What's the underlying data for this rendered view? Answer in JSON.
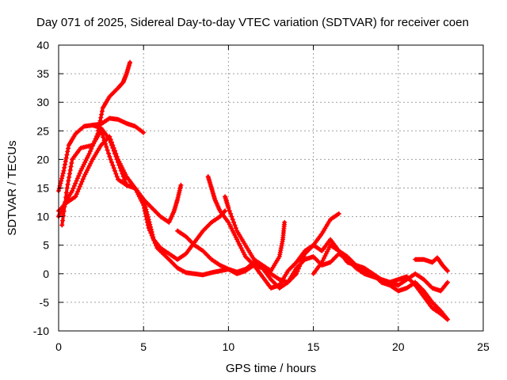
{
  "chart_data": {
    "type": "scatter",
    "title": "Day 071 of 2025, Sidereal Day-to-day VTEC variation (SDTVAR) for receiver coen",
    "xlabel": "GPS time / hours",
    "ylabel": "SDTVAR / TECUs",
    "xlim": [
      0,
      25
    ],
    "ylim": [
      -10,
      40
    ],
    "xticks": [
      "0",
      "5",
      "10",
      "15",
      "20",
      "25"
    ],
    "yticks": [
      "-10",
      "-5",
      "0",
      "5",
      "10",
      "15",
      "20",
      "25",
      "30",
      "35",
      "40"
    ],
    "grid": true,
    "marker": "+",
    "series_color": "#ff0000",
    "series": [
      {
        "name": "track-1",
        "points": [
          [
            0.0,
            14.5
          ],
          [
            0.3,
            18.0
          ],
          [
            0.6,
            22.5
          ],
          [
            1.0,
            24.5
          ],
          [
            1.5,
            25.8
          ],
          [
            2.0,
            26.0
          ],
          [
            2.5,
            26.2
          ],
          [
            3.0,
            27.2
          ],
          [
            3.5,
            27.0
          ],
          [
            4.0,
            26.3
          ],
          [
            4.5,
            25.8
          ],
          [
            5.0,
            24.7
          ]
        ]
      },
      {
        "name": "track-2",
        "points": [
          [
            0.0,
            10.0
          ],
          [
            0.3,
            12.0
          ],
          [
            0.8,
            14.5
          ],
          [
            1.3,
            18.0
          ],
          [
            1.8,
            21.0
          ],
          [
            2.3,
            24.5
          ],
          [
            2.6,
            29.0
          ],
          [
            3.0,
            31.0
          ],
          [
            3.5,
            32.5
          ],
          [
            3.8,
            33.5
          ],
          [
            4.0,
            35.0
          ],
          [
            4.2,
            37.0
          ]
        ]
      },
      {
        "name": "track-3",
        "points": [
          [
            0.2,
            8.5
          ],
          [
            0.5,
            15.0
          ],
          [
            0.8,
            20.0
          ],
          [
            1.3,
            22.0
          ],
          [
            2.0,
            22.5
          ],
          [
            2.5,
            25.0
          ],
          [
            3.0,
            20.5
          ],
          [
            3.5,
            16.5
          ],
          [
            4.0,
            15.5
          ],
          [
            4.5,
            15.0
          ],
          [
            5.0,
            13.0
          ],
          [
            5.3,
            9.5
          ],
          [
            5.6,
            6.0
          ],
          [
            6.0,
            4.5
          ],
          [
            6.5,
            3.5
          ],
          [
            7.0,
            2.5
          ],
          [
            7.5,
            3.5
          ],
          [
            8.0,
            5.5
          ],
          [
            8.5,
            7.5
          ],
          [
            9.0,
            9.0
          ],
          [
            9.5,
            10.0
          ],
          [
            9.8,
            11.0
          ]
        ]
      },
      {
        "name": "track-4",
        "points": [
          [
            0.0,
            11.0
          ],
          [
            0.5,
            12.5
          ],
          [
            1.0,
            13.5
          ],
          [
            1.5,
            17.0
          ],
          [
            2.0,
            20.0
          ],
          [
            2.5,
            22.5
          ],
          [
            3.0,
            24.0
          ],
          [
            3.5,
            20.0
          ],
          [
            4.0,
            17.0
          ],
          [
            4.5,
            15.0
          ],
          [
            5.0,
            13.0
          ],
          [
            5.5,
            11.5
          ],
          [
            6.0,
            10.0
          ],
          [
            6.5,
            9.0
          ],
          [
            6.8,
            11.0
          ],
          [
            7.0,
            13.0
          ],
          [
            7.2,
            15.5
          ]
        ]
      },
      {
        "name": "track-5",
        "points": [
          [
            2.0,
            26.0
          ],
          [
            2.5,
            25.5
          ],
          [
            3.0,
            23.5
          ],
          [
            3.5,
            19.5
          ],
          [
            4.0,
            15.5
          ],
          [
            4.5,
            15.0
          ],
          [
            5.0,
            12.0
          ],
          [
            5.3,
            8.0
          ],
          [
            5.8,
            4.5
          ],
          [
            6.5,
            2.5
          ],
          [
            7.0,
            1.0
          ],
          [
            7.5,
            0.2
          ],
          [
            8.0,
            0.0
          ],
          [
            8.5,
            -0.2
          ],
          [
            9.0,
            0.2
          ],
          [
            9.5,
            0.5
          ],
          [
            10.0,
            0.8
          ],
          [
            10.5,
            0.3
          ],
          [
            11.0,
            0.8
          ],
          [
            11.5,
            2.0
          ],
          [
            12.0,
            1.5
          ],
          [
            12.5,
            0.0
          ],
          [
            13.0,
            -1.0
          ],
          [
            13.5,
            -1.5
          ],
          [
            14.0,
            0.0
          ],
          [
            14.5,
            3.5
          ]
        ]
      },
      {
        "name": "track-6",
        "points": [
          [
            7.0,
            7.5
          ],
          [
            7.5,
            6.5
          ],
          [
            8.0,
            5.0
          ],
          [
            8.5,
            4.0
          ],
          [
            9.0,
            2.5
          ],
          [
            9.5,
            1.5
          ],
          [
            10.0,
            0.8
          ],
          [
            10.5,
            0.0
          ],
          [
            11.0,
            0.5
          ],
          [
            11.5,
            1.5
          ],
          [
            12.0,
            1.0
          ],
          [
            12.5,
            -1.0
          ],
          [
            13.0,
            -2.5
          ],
          [
            13.5,
            -1.5
          ],
          [
            14.0,
            1.0
          ],
          [
            14.5,
            2.5
          ],
          [
            15.0,
            3.0
          ],
          [
            15.5,
            1.5
          ],
          [
            16.0,
            2.0
          ],
          [
            16.5,
            3.5
          ],
          [
            17.0,
            2.5
          ],
          [
            17.5,
            1.0
          ],
          [
            18.0,
            0.0
          ],
          [
            18.5,
            -0.5
          ],
          [
            19.0,
            -1.0
          ],
          [
            19.5,
            -1.5
          ],
          [
            20.0,
            -2.0
          ],
          [
            20.5,
            -1.0
          ],
          [
            21.0,
            0.0
          ],
          [
            21.5,
            -1.0
          ],
          [
            22.0,
            -2.5
          ],
          [
            22.5,
            -3.0
          ],
          [
            22.9,
            -1.5
          ]
        ]
      },
      {
        "name": "track-7",
        "points": [
          [
            8.8,
            17.0
          ],
          [
            9.0,
            15.0
          ],
          [
            9.2,
            13.0
          ],
          [
            9.5,
            11.0
          ],
          [
            10.0,
            9.0
          ],
          [
            10.5,
            6.0
          ],
          [
            11.0,
            3.0
          ],
          [
            11.5,
            1.5
          ],
          [
            12.0,
            -0.5
          ],
          [
            12.5,
            -2.5
          ],
          [
            13.0,
            -2.0
          ],
          [
            13.5,
            0.5
          ],
          [
            14.0,
            2.0
          ],
          [
            14.5,
            3.5
          ],
          [
            15.0,
            5.0
          ],
          [
            15.5,
            4.0
          ],
          [
            16.0,
            6.0
          ],
          [
            16.5,
            4.0
          ],
          [
            17.0,
            2.0
          ],
          [
            17.5,
            1.5
          ],
          [
            18.0,
            0.5
          ],
          [
            18.5,
            0.0
          ],
          [
            19.0,
            -1.0
          ],
          [
            19.5,
            -1.5
          ],
          [
            20.0,
            -1.0
          ],
          [
            20.5,
            -0.5
          ],
          [
            21.0,
            -2.0
          ],
          [
            21.5,
            -4.0
          ],
          [
            22.0,
            -6.0
          ],
          [
            22.5,
            -7.0
          ],
          [
            22.9,
            -8.0
          ]
        ]
      },
      {
        "name": "track-8",
        "points": [
          [
            9.8,
            13.5
          ],
          [
            10.0,
            11.5
          ],
          [
            10.5,
            7.5
          ],
          [
            11.0,
            5.0
          ],
          [
            11.5,
            2.5
          ],
          [
            12.0,
            1.5
          ],
          [
            12.5,
            0.5
          ],
          [
            13.0,
            3.0
          ],
          [
            13.2,
            6.0
          ],
          [
            13.3,
            9.0
          ]
        ]
      },
      {
        "name": "track-9",
        "points": [
          [
            14.0,
            2.0
          ],
          [
            14.5,
            4.0
          ],
          [
            15.0,
            5.0
          ],
          [
            15.5,
            7.0
          ],
          [
            16.0,
            9.5
          ],
          [
            16.5,
            10.5
          ]
        ]
      },
      {
        "name": "track-10",
        "points": [
          [
            15.0,
            0.0
          ],
          [
            15.5,
            2.0
          ],
          [
            16.0,
            5.0
          ],
          [
            16.5,
            4.0
          ],
          [
            17.0,
            3.0
          ],
          [
            17.5,
            1.5
          ],
          [
            18.0,
            1.0
          ],
          [
            18.5,
            0.0
          ],
          [
            19.0,
            -1.5
          ],
          [
            19.5,
            -2.0
          ],
          [
            20.0,
            -3.0
          ],
          [
            20.5,
            -2.5
          ],
          [
            21.0,
            -1.5
          ],
          [
            21.5,
            -3.0
          ],
          [
            22.0,
            -5.0
          ],
          [
            22.5,
            -6.5
          ],
          [
            22.9,
            -8.0
          ]
        ]
      },
      {
        "name": "track-11",
        "points": [
          [
            21.0,
            2.5
          ],
          [
            21.5,
            2.5
          ],
          [
            22.0,
            2.0
          ],
          [
            22.3,
            2.8
          ],
          [
            22.6,
            1.5
          ],
          [
            22.9,
            0.5
          ]
        ]
      }
    ]
  }
}
